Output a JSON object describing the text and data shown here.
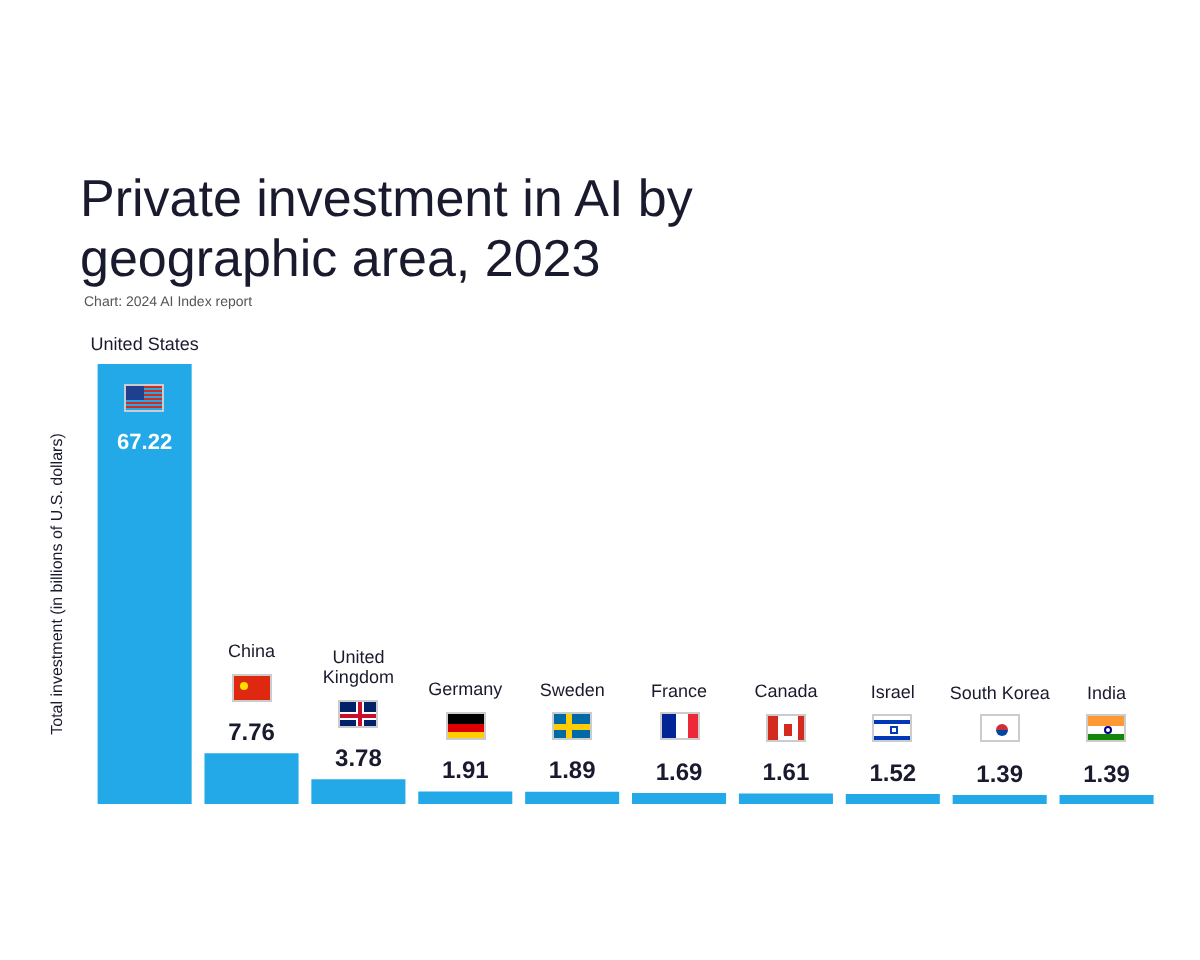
{
  "chart_data": {
    "type": "bar",
    "title": "Private investment in AI by geographic area, 2023",
    "annotations": [
      "Chart: 2024 AI Index report"
    ],
    "ylabel": "Total investment (in billions of U.S. dollars)",
    "categories": [
      "United States",
      "China",
      "United Kingdom",
      "Germany",
      "Sweden",
      "France",
      "Canada",
      "Israel",
      "South Korea",
      "India"
    ],
    "values": [
      67.22,
      7.76,
      3.78,
      1.91,
      1.89,
      1.69,
      1.61,
      1.52,
      1.39,
      1.39
    ],
    "color": "#23a9e8",
    "data_labels": true
  }
}
